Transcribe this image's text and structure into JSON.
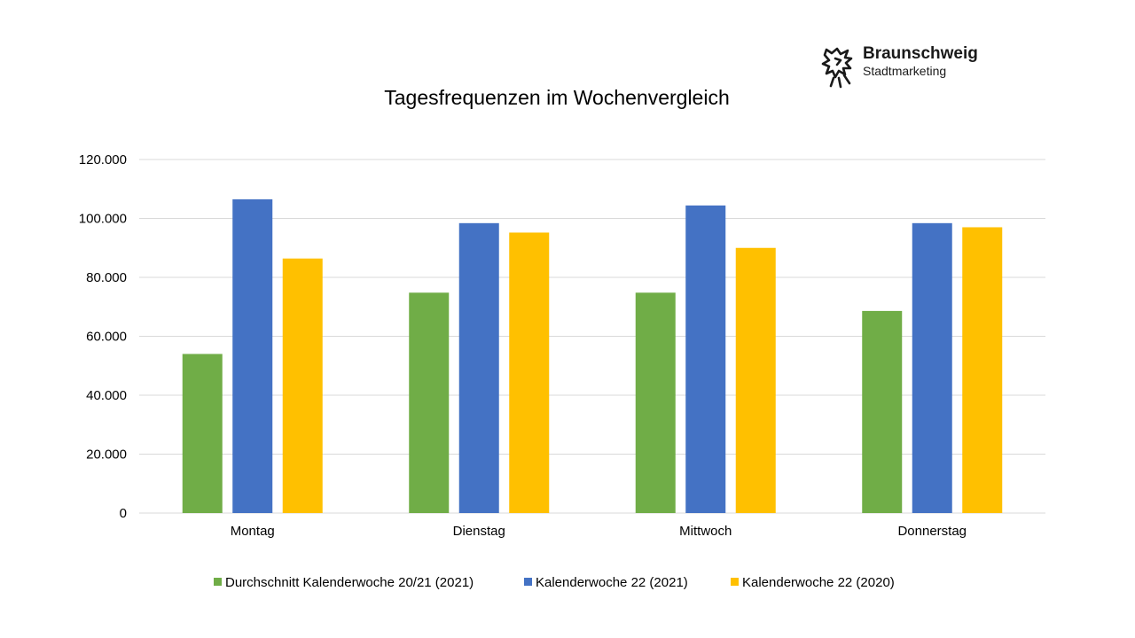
{
  "logo": {
    "name": "Braunschweig",
    "subtitle": "Stadtmarketing"
  },
  "chart_data": {
    "type": "bar",
    "title": "Tagesfrequenzen im Wochenvergleich",
    "categories": [
      "Montag",
      "Dienstag",
      "Mittwoch",
      "Donnerstag"
    ],
    "series": [
      {
        "name": "Durchschnitt Kalenderwoche 20/21 (2021)",
        "color": "#70ad47",
        "values": [
          54000,
          74800,
          74800,
          68600
        ]
      },
      {
        "name": "Kalenderwoche 22 (2021)",
        "color": "#4472c4",
        "values": [
          106500,
          98400,
          104400,
          98400
        ]
      },
      {
        "name": "Kalenderwoche 22 (2020)",
        "color": "#ffc000",
        "values": [
          86400,
          95200,
          90000,
          97000
        ]
      }
    ],
    "y_ticks": [
      "0",
      "20.000",
      "40.000",
      "60.000",
      "80.000",
      "100.000",
      "120.000"
    ],
    "ylim": [
      0,
      120000
    ],
    "grid": true,
    "legend_position": "bottom"
  }
}
